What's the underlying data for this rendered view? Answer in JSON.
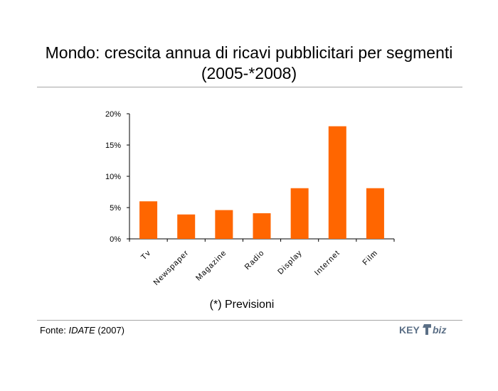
{
  "title_line1": "Mondo: crescita annua di ricavi pubblicitari per segmenti",
  "title_line2": "(2005-*2008)",
  "note": "(*) Previsioni",
  "source": {
    "prefix": "Fonte: ",
    "name": "IDATE",
    "suffix": " (2007)"
  },
  "logo": {
    "text_left": "KEY",
    "text_right": "biz",
    "color": "#5b6f86"
  },
  "colors": {
    "bar": "#ff6600",
    "rule": "#a6a6a6",
    "axis": "#000000"
  },
  "chart_data": {
    "type": "bar",
    "categories": [
      "Tv",
      "Newspaper",
      "Magazine",
      "Radio",
      "Display",
      "Internet",
      "Film"
    ],
    "values": [
      6.0,
      3.9,
      4.6,
      4.1,
      8.1,
      18.0,
      8.1
    ],
    "ylim": [
      0,
      20
    ],
    "yticks": [
      "0%",
      "5%",
      "10%",
      "15%",
      "20%"
    ],
    "ytick_values": [
      0,
      5,
      10,
      15,
      20
    ],
    "grid": false,
    "legend": "none"
  }
}
